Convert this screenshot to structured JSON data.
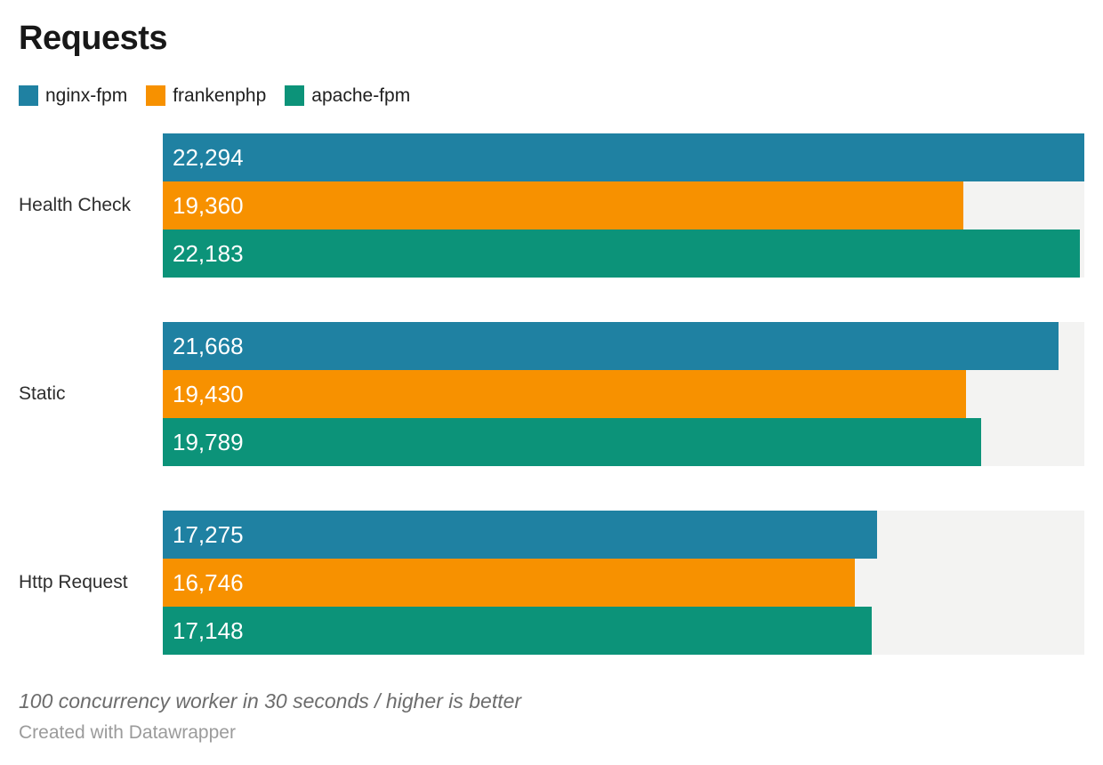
{
  "title": "Requests",
  "legend": {
    "items": [
      {
        "label": "nginx-fpm",
        "color": "#1f81a2"
      },
      {
        "label": "frankenphp",
        "color": "#f79100"
      },
      {
        "label": "apache-fpm",
        "color": "#0c9379"
      }
    ]
  },
  "chart_data": {
    "type": "bar",
    "orientation": "horizontal",
    "title": "Requests",
    "categories": [
      "Health Check",
      "Static",
      "Http Request"
    ],
    "series": [
      {
        "name": "nginx-fpm",
        "color": "#1f81a2",
        "values": [
          22294,
          21668,
          17275
        ],
        "labels": [
          "22,294",
          "21,668",
          "17,275"
        ]
      },
      {
        "name": "frankenphp",
        "color": "#f79100",
        "values": [
          19360,
          19430,
          16746
        ],
        "labels": [
          "19,360",
          "19,430",
          "16,746"
        ]
      },
      {
        "name": "apache-fpm",
        "color": "#0c9379",
        "values": [
          22183,
          19789,
          17148
        ],
        "labels": [
          "22,183",
          "19,789",
          "17,148"
        ]
      }
    ],
    "axis_max": 22294,
    "axis_min": 0,
    "grid": false,
    "legend_position": "top",
    "track_color": "#f3f3f2",
    "value_label_color": "#ffffff"
  },
  "footer": {
    "note": "100 concurrency worker in 30 seconds / higher is better",
    "credit": "Created with Datawrapper"
  }
}
